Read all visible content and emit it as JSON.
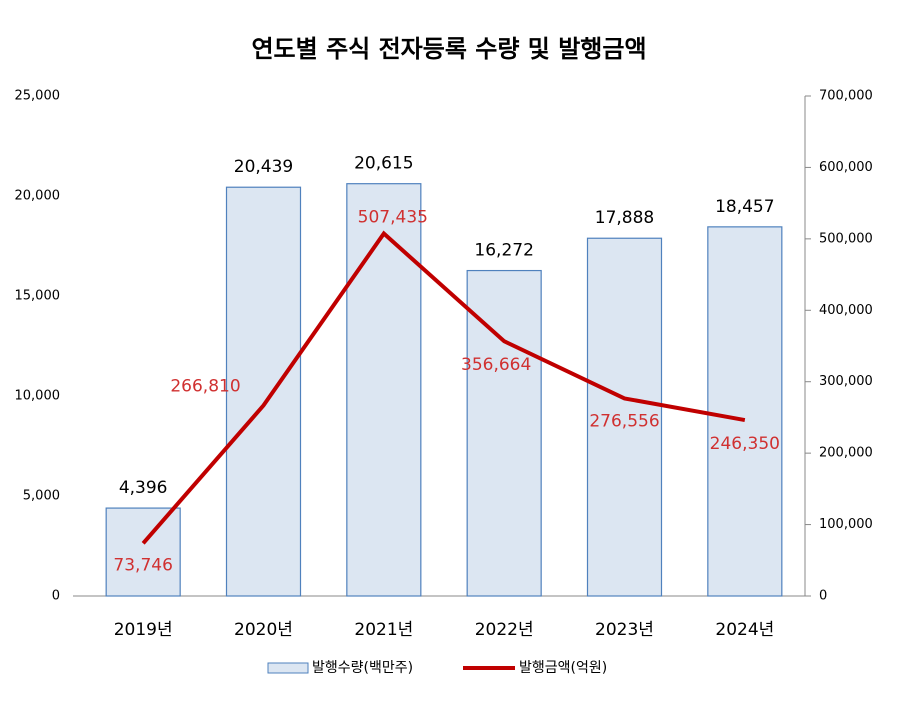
{
  "chart_data": {
    "type": "bar",
    "title": "연도별 주식 전자등록 수량 및 발행금액",
    "categories": [
      "2019년",
      "2020년",
      "2021년",
      "2022년",
      "2023년",
      "2024년"
    ],
    "series": [
      {
        "name": "발행수량(백만주)",
        "type": "bar",
        "color": "#dce6f2",
        "values": [
          4396,
          20439,
          20615,
          16272,
          17888,
          18457
        ],
        "value_labels": [
          "4,396",
          "20,439",
          "20,615",
          "16,272",
          "17,888",
          "18,457"
        ]
      },
      {
        "name": "발행금액(억원)",
        "type": "line",
        "axis": "y2",
        "color": "#c00000",
        "values": [
          73746,
          266810,
          507435,
          356664,
          276556,
          246350
        ],
        "value_labels": [
          "73,746",
          "266,810",
          "507,435",
          "356,664",
          "276,556",
          "246,350"
        ]
      }
    ],
    "ylim": [
      0,
      25000
    ],
    "yticks": [
      0,
      {
        "value": 5000,
        "label": "5,000"
      },
      {
        "value": 10000,
        "label": "10,000"
      },
      {
        "value": 15000,
        "label": "15,000"
      },
      {
        "value": 20000,
        "label": "20,000"
      },
      {
        "value": 25000,
        "label": "25,000"
      }
    ],
    "y2lim": [
      0,
      700000
    ],
    "y2ticks": [
      0,
      {
        "value": 100000,
        "label": "100,000"
      },
      {
        "value": 200000,
        "label": "200,000"
      },
      {
        "value": 300000,
        "label": "300,000"
      },
      {
        "value": 400000,
        "label": "400,000"
      },
      {
        "value": 500000,
        "label": "500,000"
      },
      {
        "value": 600000,
        "label": "600,000"
      },
      {
        "value": 700000,
        "label": "700,000"
      }
    ],
    "grid": false,
    "legend": "bottom"
  }
}
